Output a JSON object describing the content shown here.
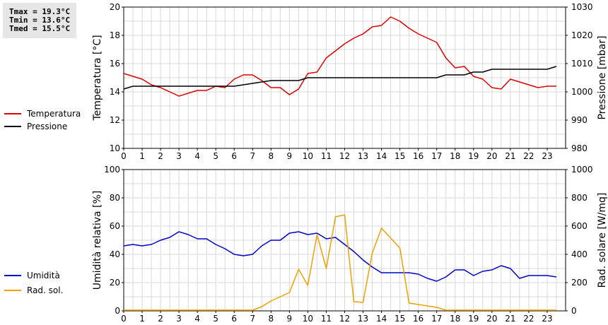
{
  "stats": {
    "tmax": "Tmax = 19.3°C",
    "tmin": "Tmin = 13.6°C",
    "tmed": "Tmed = 15.5°C"
  },
  "chart_data": [
    {
      "type": "line",
      "xlabel": "",
      "ylabel": "Temperatura [°C]",
      "y2label": "Pressione [mbar]",
      "xlim": [
        0,
        24
      ],
      "xticks": [
        "0",
        "1",
        "2",
        "3",
        "4",
        "5",
        "6",
        "7",
        "8",
        "9",
        "10",
        "11",
        "12",
        "13",
        "14",
        "15",
        "16",
        "17",
        "18",
        "19",
        "20",
        "21",
        "22",
        "23"
      ],
      "ylim": [
        10,
        20
      ],
      "yticks": [
        "10",
        "12",
        "14",
        "16",
        "18",
        "20"
      ],
      "y2lim": [
        980,
        1030
      ],
      "y2ticks": [
        "980",
        "990",
        "1000",
        "1010",
        "1020",
        "1030"
      ],
      "grid": true,
      "legend_position": "left",
      "series": [
        {
          "name": "Temperatura",
          "axis": "left",
          "color": "#dd0000",
          "x": [
            0,
            0.5,
            1,
            1.5,
            2,
            2.5,
            3,
            3.5,
            4,
            4.5,
            5,
            5.5,
            6,
            6.5,
            7,
            7.5,
            8,
            8.5,
            9,
            9.5,
            10,
            10.5,
            11,
            11.5,
            12,
            12.5,
            13,
            13.5,
            14,
            14.5,
            15,
            15.5,
            16,
            16.5,
            17,
            17.5,
            18,
            18.5,
            19,
            19.5,
            20,
            20.5,
            21,
            21.5,
            22,
            22.5,
            23,
            23.5
          ],
          "values": [
            15.3,
            15.1,
            14.9,
            14.5,
            14.3,
            14.0,
            13.7,
            13.9,
            14.1,
            14.1,
            14.4,
            14.3,
            14.9,
            15.2,
            15.2,
            14.8,
            14.3,
            14.3,
            13.8,
            14.2,
            15.3,
            15.4,
            16.4,
            16.9,
            17.4,
            17.8,
            18.1,
            18.6,
            18.7,
            19.3,
            19.0,
            18.5,
            18.1,
            17.8,
            17.5,
            16.4,
            15.7,
            15.8,
            15.1,
            14.9,
            14.3,
            14.2,
            14.9,
            14.7,
            14.5,
            14.3,
            14.4,
            14.4
          ]
        },
        {
          "name": "Pressione",
          "axis": "right",
          "color": "#000000",
          "x": [
            0,
            0.5,
            1,
            1.5,
            2,
            2.5,
            3,
            3.5,
            4,
            4.5,
            5,
            5.5,
            6,
            6.5,
            7,
            7.5,
            8,
            8.5,
            9,
            9.5,
            10,
            10.5,
            11,
            11.5,
            12,
            12.5,
            13,
            13.5,
            14,
            14.5,
            15,
            15.5,
            16,
            16.5,
            17,
            17.5,
            18,
            18.5,
            19,
            19.5,
            20,
            20.5,
            21,
            21.5,
            22,
            22.5,
            23,
            23.5
          ],
          "values": [
            1001,
            1002,
            1002,
            1002,
            1002,
            1002,
            1002,
            1002,
            1002,
            1002,
            1002,
            1002,
            1002,
            1002.5,
            1003,
            1003.5,
            1004,
            1004,
            1004,
            1004,
            1005,
            1005,
            1005,
            1005,
            1005,
            1005,
            1005,
            1005,
            1005,
            1005,
            1005,
            1005,
            1005,
            1005,
            1005,
            1006,
            1006,
            1006,
            1007,
            1007,
            1008,
            1008,
            1008,
            1008,
            1008,
            1008,
            1008,
            1009
          ]
        }
      ]
    },
    {
      "type": "line",
      "xlabel": "",
      "ylabel": "Umidità relativa [%]",
      "y2label": "Rad. solare [W/mq]",
      "xlim": [
        0,
        24
      ],
      "xticks": [
        "0",
        "1",
        "2",
        "3",
        "4",
        "5",
        "6",
        "7",
        "8",
        "9",
        "10",
        "11",
        "12",
        "13",
        "14",
        "15",
        "16",
        "17",
        "18",
        "19",
        "20",
        "21",
        "22",
        "23"
      ],
      "ylim": [
        0,
        100
      ],
      "yticks": [
        "0",
        "20",
        "40",
        "60",
        "80",
        "100"
      ],
      "y2lim": [
        0,
        1000
      ],
      "y2ticks": [
        "0",
        "200",
        "400",
        "600",
        "800",
        "1000"
      ],
      "grid": true,
      "legend_position": "left",
      "series": [
        {
          "name": "Umidità",
          "axis": "left",
          "color": "#0000cc",
          "x": [
            0,
            0.5,
            1,
            1.5,
            2,
            2.5,
            3,
            3.5,
            4,
            4.5,
            5,
            5.5,
            6,
            6.5,
            7,
            7.5,
            8,
            8.5,
            9,
            9.5,
            10,
            10.5,
            11,
            11.5,
            12,
            12.5,
            13,
            13.5,
            14,
            14.5,
            15,
            15.5,
            16,
            16.5,
            17,
            17.5,
            18,
            18.5,
            19,
            19.5,
            20,
            20.5,
            21,
            21.5,
            22,
            22.5,
            23,
            23.5
          ],
          "values": [
            46,
            47,
            46,
            47,
            50,
            52,
            56,
            54,
            51,
            51,
            47,
            44,
            40,
            39,
            40,
            46,
            50,
            50,
            55,
            56,
            54,
            55,
            51,
            52,
            47,
            42,
            36,
            31,
            27,
            27,
            27,
            27,
            26,
            23,
            21,
            24,
            29,
            29,
            25,
            28,
            29,
            32,
            30,
            23,
            25,
            25,
            25,
            24
          ]
        },
        {
          "name": "Rad. sol.",
          "axis": "right",
          "color": "#f0a000",
          "x": [
            0,
            1,
            2,
            3,
            4,
            5,
            6,
            7,
            7.5,
            8,
            8.5,
            9,
            9.5,
            10,
            10.5,
            11,
            11.5,
            12,
            12.5,
            13,
            13.5,
            14,
            14.5,
            15,
            15.5,
            16,
            16.5,
            17,
            17.5,
            18,
            19,
            20,
            21,
            22,
            23,
            23.5
          ],
          "values": [
            5,
            5,
            5,
            5,
            5,
            5,
            5,
            5,
            30,
            70,
            100,
            130,
            295,
            180,
            540,
            300,
            665,
            680,
            65,
            60,
            410,
            585,
            515,
            445,
            55,
            45,
            35,
            25,
            5,
            5,
            5,
            5,
            5,
            5,
            5,
            5
          ]
        }
      ]
    }
  ]
}
